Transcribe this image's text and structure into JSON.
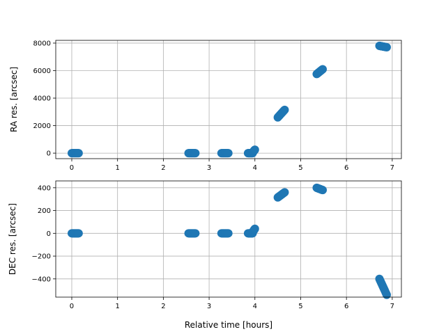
{
  "chart_data": [
    {
      "type": "scatter",
      "title": "",
      "xlabel": "",
      "ylabel": "RA res. [arcsec]",
      "xlim": [
        -0.35,
        7.2
      ],
      "ylim": [
        -400,
        8200
      ],
      "xticks": [
        0,
        1,
        2,
        3,
        4,
        5,
        6,
        7
      ],
      "yticks": [
        0,
        2000,
        4000,
        6000,
        8000
      ],
      "grid": true,
      "marker_color": "#1f77b4",
      "clusters": [
        {
          "x_start": 0.0,
          "x_end": 0.15,
          "y_start": 0,
          "y_end": 0
        },
        {
          "x_start": 2.55,
          "x_end": 2.7,
          "y_start": 0,
          "y_end": 0
        },
        {
          "x_start": 3.27,
          "x_end": 3.42,
          "y_start": 0,
          "y_end": 0
        },
        {
          "x_start": 3.85,
          "x_end": 3.95,
          "y_start": 0,
          "y_end": 0
        },
        {
          "x_start": 3.95,
          "x_end": 4.0,
          "y_start": 50,
          "y_end": 250
        },
        {
          "x_start": 4.5,
          "x_end": 4.65,
          "y_start": 2600,
          "y_end": 3150
        },
        {
          "x_start": 5.35,
          "x_end": 5.48,
          "y_start": 5750,
          "y_end": 6100
        },
        {
          "x_start": 6.72,
          "x_end": 6.88,
          "y_start": 7800,
          "y_end": 7700
        }
      ]
    },
    {
      "type": "scatter",
      "title": "",
      "xlabel": "Relative time [hours]",
      "ylabel": "DEC res. [arcsec]",
      "xlim": [
        -0.35,
        7.2
      ],
      "ylim": [
        -560,
        460
      ],
      "xticks": [
        0,
        1,
        2,
        3,
        4,
        5,
        6,
        7
      ],
      "yticks": [
        -400,
        -200,
        0,
        200,
        400
      ],
      "ytick_labels": [
        "−400",
        "−200",
        "0",
        "200",
        "400"
      ],
      "grid": true,
      "marker_color": "#1f77b4",
      "clusters": [
        {
          "x_start": 0.0,
          "x_end": 0.15,
          "y_start": 0,
          "y_end": 0
        },
        {
          "x_start": 2.55,
          "x_end": 2.7,
          "y_start": 0,
          "y_end": 0
        },
        {
          "x_start": 3.27,
          "x_end": 3.42,
          "y_start": 0,
          "y_end": 0
        },
        {
          "x_start": 3.85,
          "x_end": 3.95,
          "y_start": 0,
          "y_end": 0
        },
        {
          "x_start": 3.95,
          "x_end": 4.0,
          "y_start": 10,
          "y_end": 40
        },
        {
          "x_start": 4.5,
          "x_end": 4.65,
          "y_start": 315,
          "y_end": 360
        },
        {
          "x_start": 5.35,
          "x_end": 5.48,
          "y_start": 400,
          "y_end": 380
        },
        {
          "x_start": 6.72,
          "x_end": 6.88,
          "y_start": -400,
          "y_end": -540
        }
      ]
    }
  ]
}
